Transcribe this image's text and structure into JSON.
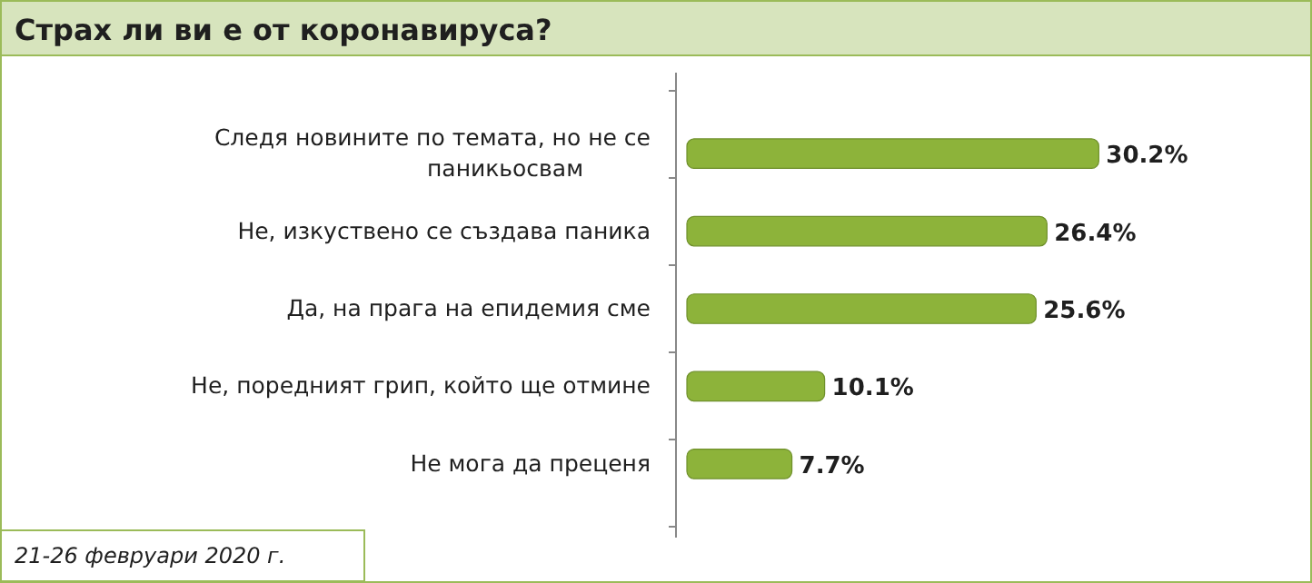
{
  "chart_data": {
    "type": "bar",
    "orientation": "horizontal",
    "title": "Страх ли ви е от коронавируса?",
    "categories": [
      "Следя новините по темата, но не се паникьосвам",
      "Не, изкуствено се създава паника",
      "Да, на прага на епидемия сме",
      "Не, поредният грип, който ще отмине",
      "Не мога да преценя"
    ],
    "values": [
      30.2,
      26.4,
      25.6,
      10.1,
      7.7
    ],
    "value_labels": [
      "30.2%",
      "26.4%",
      "25.6%",
      "10.1%",
      "7.7%"
    ],
    "color": "#8db33a",
    "tick_labels": "y",
    "annotations": [
      "21-26 февруари 2020 г."
    ]
  }
}
